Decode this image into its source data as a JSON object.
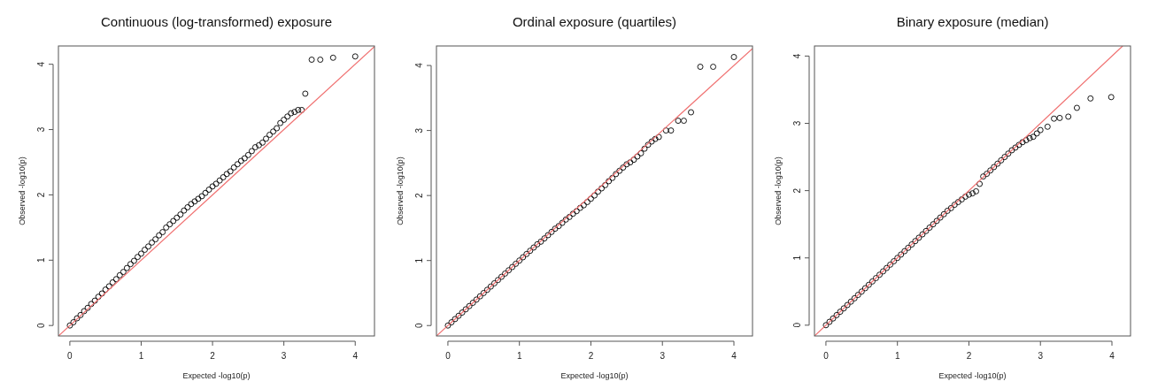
{
  "chart_data": [
    {
      "type": "scatter",
      "title": "Continuous (log-transformed) exposure",
      "xlabel": "Expected -log10(p)",
      "ylabel": "Observed -log10(p)",
      "xlim": [
        -0.16,
        4.27
      ],
      "ylim": [
        -0.16,
        4.28
      ],
      "xticks": [
        0,
        1,
        2,
        3,
        4
      ],
      "yticks": [
        0,
        1,
        2,
        3,
        4
      ],
      "grid": false,
      "series": [
        {
          "marker": "circle",
          "color": "#000000",
          "x": [
            0,
            0.05,
            0.1,
            0.15,
            0.2,
            0.25,
            0.3,
            0.35,
            0.4,
            0.45,
            0.5,
            0.55,
            0.6,
            0.65,
            0.7,
            0.75,
            0.8,
            0.85,
            0.9,
            0.95,
            1.0,
            1.05,
            1.1,
            1.15,
            1.2,
            1.25,
            1.3,
            1.35,
            1.4,
            1.45,
            1.5,
            1.55,
            1.6,
            1.65,
            1.7,
            1.75,
            1.8,
            1.85,
            1.9,
            1.95,
            2.0,
            2.05,
            2.1,
            2.15,
            2.2,
            2.25,
            2.3,
            2.35,
            2.4,
            2.45,
            2.5,
            2.55,
            2.6,
            2.65,
            2.7,
            2.75,
            2.8,
            2.85,
            2.9,
            2.95,
            3.0,
            3.05,
            3.1,
            3.15,
            3.2,
            3.25,
            3.3,
            3.39,
            3.51,
            3.69,
            4.0
          ],
          "values": [
            0,
            0.05,
            0.11,
            0.16,
            0.22,
            0.27,
            0.33,
            0.38,
            0.44,
            0.49,
            0.55,
            0.6,
            0.66,
            0.71,
            0.77,
            0.82,
            0.88,
            0.94,
            0.99,
            1.05,
            1.1,
            1.16,
            1.21,
            1.27,
            1.32,
            1.38,
            1.43,
            1.5,
            1.55,
            1.6,
            1.65,
            1.7,
            1.76,
            1.81,
            1.86,
            1.9,
            1.94,
            1.98,
            2.03,
            2.08,
            2.13,
            2.17,
            2.22,
            2.27,
            2.32,
            2.36,
            2.42,
            2.47,
            2.52,
            2.56,
            2.61,
            2.67,
            2.73,
            2.76,
            2.8,
            2.86,
            2.92,
            2.97,
            3.02,
            3.1,
            3.15,
            3.2,
            3.25,
            3.27,
            3.3,
            3.3,
            3.55,
            4.07,
            4.07,
            4.1,
            4.12
          ]
        },
        {
          "type": "line",
          "color": "#f07070",
          "x": [
            -0.16,
            4.27
          ],
          "values": [
            -0.16,
            4.27
          ]
        }
      ]
    },
    {
      "type": "scatter",
      "title": "Ordinal exposure (quartiles)",
      "xlabel": "Expected -log10(p)",
      "ylabel": "Observed -log10(p)",
      "xlim": [
        -0.16,
        4.26
      ],
      "ylim": [
        -0.16,
        4.3
      ],
      "xticks": [
        0,
        1,
        2,
        3,
        4
      ],
      "yticks": [
        0,
        1,
        2,
        3,
        4
      ],
      "grid": false,
      "series": [
        {
          "marker": "circle",
          "color": "#000000",
          "x": [
            0,
            0.05,
            0.1,
            0.15,
            0.2,
            0.25,
            0.3,
            0.35,
            0.4,
            0.45,
            0.5,
            0.55,
            0.6,
            0.65,
            0.7,
            0.75,
            0.8,
            0.85,
            0.9,
            0.95,
            1.0,
            1.05,
            1.1,
            1.15,
            1.2,
            1.25,
            1.3,
            1.35,
            1.4,
            1.45,
            1.5,
            1.55,
            1.6,
            1.65,
            1.7,
            1.75,
            1.8,
            1.85,
            1.9,
            1.95,
            2.0,
            2.05,
            2.1,
            2.15,
            2.2,
            2.25,
            2.3,
            2.35,
            2.4,
            2.45,
            2.5,
            2.55,
            2.6,
            2.65,
            2.7,
            2.75,
            2.8,
            2.85,
            2.9,
            2.95,
            3.05,
            3.12,
            3.22,
            3.3,
            3.4,
            3.53,
            3.71,
            4.0
          ],
          "values": [
            0,
            0.05,
            0.1,
            0.15,
            0.2,
            0.25,
            0.3,
            0.35,
            0.4,
            0.45,
            0.5,
            0.55,
            0.6,
            0.65,
            0.7,
            0.75,
            0.8,
            0.85,
            0.9,
            0.95,
            1.0,
            1.05,
            1.1,
            1.15,
            1.2,
            1.25,
            1.29,
            1.34,
            1.39,
            1.44,
            1.49,
            1.53,
            1.58,
            1.63,
            1.67,
            1.72,
            1.76,
            1.81,
            1.85,
            1.9,
            1.95,
            2.0,
            2.06,
            2.11,
            2.16,
            2.22,
            2.27,
            2.33,
            2.38,
            2.43,
            2.48,
            2.51,
            2.55,
            2.6,
            2.65,
            2.72,
            2.78,
            2.83,
            2.87,
            2.9,
            3.0,
            3.0,
            3.15,
            3.15,
            3.28,
            3.98,
            3.98,
            4.13
          ]
        },
        {
          "type": "line",
          "color": "#f07070",
          "x": [
            -0.16,
            4.26
          ],
          "values": [
            -0.16,
            4.26
          ]
        }
      ]
    },
    {
      "type": "scatter",
      "title": "Binary exposure (median)",
      "xlabel": "Expected -log10(p)",
      "ylabel": "Observed -log10(p)",
      "xlim": [
        -0.16,
        4.26
      ],
      "ylim": [
        -0.16,
        4.15
      ],
      "xticks": [
        0,
        1,
        2,
        3,
        4
      ],
      "yticks": [
        0,
        1,
        2,
        3,
        4
      ],
      "grid": false,
      "series": [
        {
          "marker": "circle",
          "color": "#000000",
          "x": [
            0,
            0.05,
            0.1,
            0.15,
            0.2,
            0.25,
            0.3,
            0.35,
            0.4,
            0.45,
            0.5,
            0.55,
            0.6,
            0.65,
            0.7,
            0.75,
            0.8,
            0.85,
            0.9,
            0.95,
            1.0,
            1.05,
            1.1,
            1.15,
            1.2,
            1.25,
            1.3,
            1.35,
            1.4,
            1.45,
            1.5,
            1.55,
            1.6,
            1.65,
            1.7,
            1.75,
            1.8,
            1.85,
            1.9,
            1.95,
            2.0,
            2.05,
            2.1,
            2.15,
            2.2,
            2.25,
            2.3,
            2.35,
            2.4,
            2.45,
            2.5,
            2.55,
            2.6,
            2.65,
            2.7,
            2.75,
            2.8,
            2.85,
            2.9,
            2.95,
            3.0,
            3.1,
            3.19,
            3.27,
            3.39,
            3.51,
            3.7,
            3.99
          ],
          "values": [
            0,
            0.05,
            0.1,
            0.15,
            0.2,
            0.25,
            0.3,
            0.35,
            0.4,
            0.45,
            0.5,
            0.55,
            0.6,
            0.65,
            0.7,
            0.75,
            0.8,
            0.85,
            0.9,
            0.95,
            1.0,
            1.05,
            1.1,
            1.15,
            1.2,
            1.25,
            1.3,
            1.35,
            1.4,
            1.45,
            1.5,
            1.55,
            1.6,
            1.65,
            1.7,
            1.74,
            1.79,
            1.83,
            1.87,
            1.91,
            1.94,
            1.96,
            1.99,
            2.1,
            2.21,
            2.25,
            2.3,
            2.35,
            2.4,
            2.45,
            2.5,
            2.55,
            2.6,
            2.64,
            2.68,
            2.72,
            2.75,
            2.78,
            2.8,
            2.85,
            2.9,
            2.95,
            3.07,
            3.08,
            3.1,
            3.23,
            3.37,
            3.39
          ]
        },
        {
          "type": "line",
          "color": "#f07070",
          "x": [
            -0.16,
            4.15
          ],
          "values": [
            -0.16,
            4.15
          ]
        }
      ]
    }
  ]
}
